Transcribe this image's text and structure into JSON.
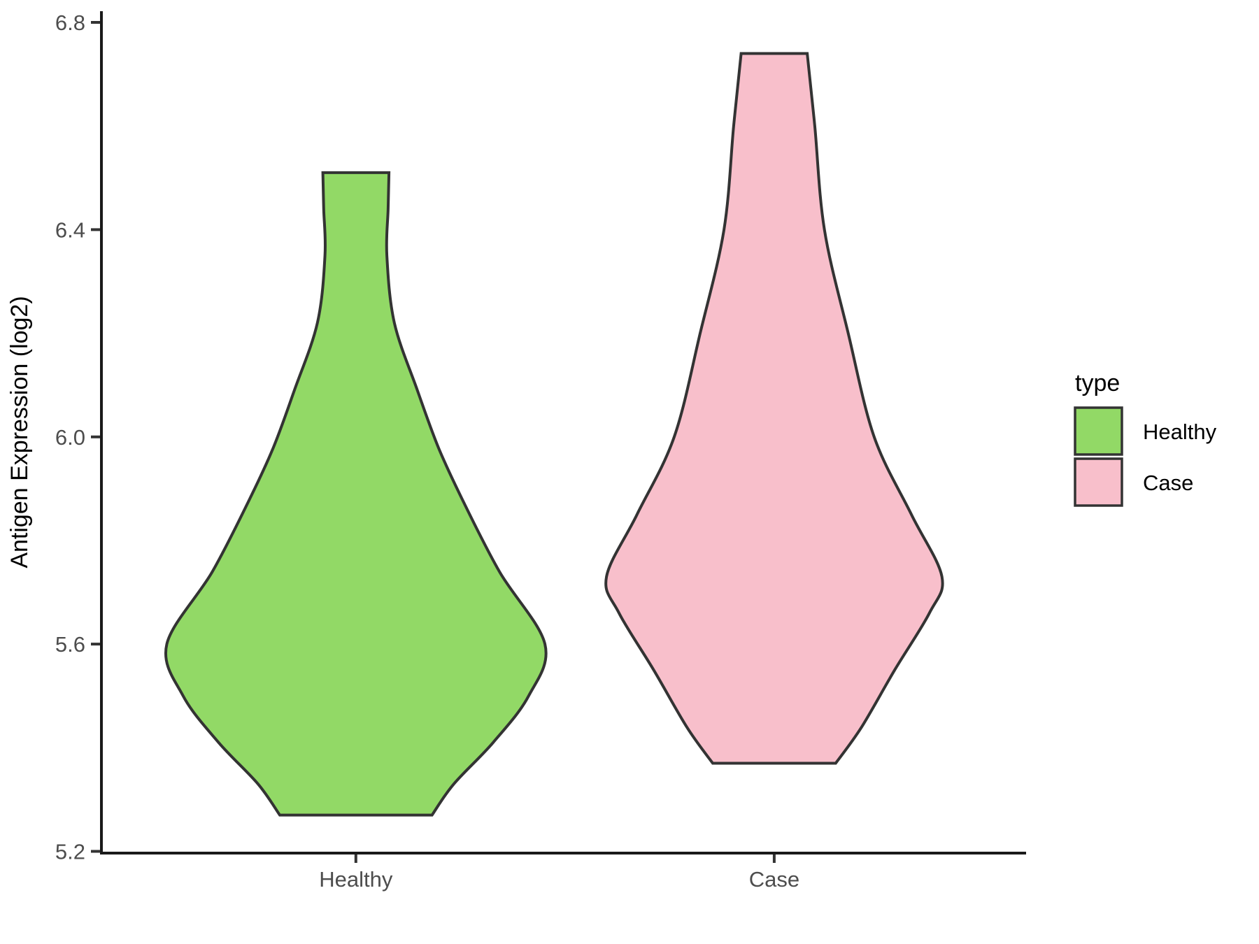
{
  "chart_data": {
    "type": "violin",
    "title": "",
    "xlabel": "",
    "ylabel": "Antigen Expression (log2)",
    "categories": [
      "Healthy",
      "Case"
    ],
    "y_ticks": [
      6.8,
      6.4,
      6.0,
      5.6,
      5.2
    ],
    "y_tick_labels": [
      "6.8",
      "6.4",
      "6.0",
      "5.6",
      "5.2"
    ],
    "ylim": [
      5.2,
      6.8
    ],
    "grid": "off",
    "legend": {
      "title": "type",
      "position": "right",
      "entries": [
        {
          "label": "Healthy",
          "color": "#92D966"
        },
        {
          "label": "Case",
          "color": "#F8BFCB"
        }
      ]
    },
    "series": [
      {
        "name": "Healthy",
        "color": "#92D966",
        "y_min": 5.27,
        "y_max": 6.51,
        "widest_at": 5.6,
        "profile": [
          [
            6.51,
            0.079
          ],
          [
            6.44,
            0.077
          ],
          [
            6.35,
            0.074
          ],
          [
            6.22,
            0.092
          ],
          [
            6.09,
            0.147
          ],
          [
            5.98,
            0.197
          ],
          [
            5.88,
            0.254
          ],
          [
            5.74,
            0.343
          ],
          [
            5.6,
            0.452
          ],
          [
            5.5,
            0.413
          ],
          [
            5.41,
            0.328
          ],
          [
            5.33,
            0.234
          ],
          [
            5.27,
            0.182
          ]
        ]
      },
      {
        "name": "Case",
        "color": "#F8BFCB",
        "y_min": 5.37,
        "y_max": 6.74,
        "widest_at": 5.73,
        "profile": [
          [
            6.74,
            0.079
          ],
          [
            6.6,
            0.097
          ],
          [
            6.4,
            0.12
          ],
          [
            6.2,
            0.177
          ],
          [
            6.0,
            0.239
          ],
          [
            5.85,
            0.328
          ],
          [
            5.73,
            0.401
          ],
          [
            5.66,
            0.371
          ],
          [
            5.55,
            0.288
          ],
          [
            5.44,
            0.209
          ],
          [
            5.37,
            0.147
          ]
        ]
      }
    ],
    "outline_color": "#333333",
    "axis_color": "#1a1a1a",
    "tick_text_color": "#4d4d4d"
  }
}
